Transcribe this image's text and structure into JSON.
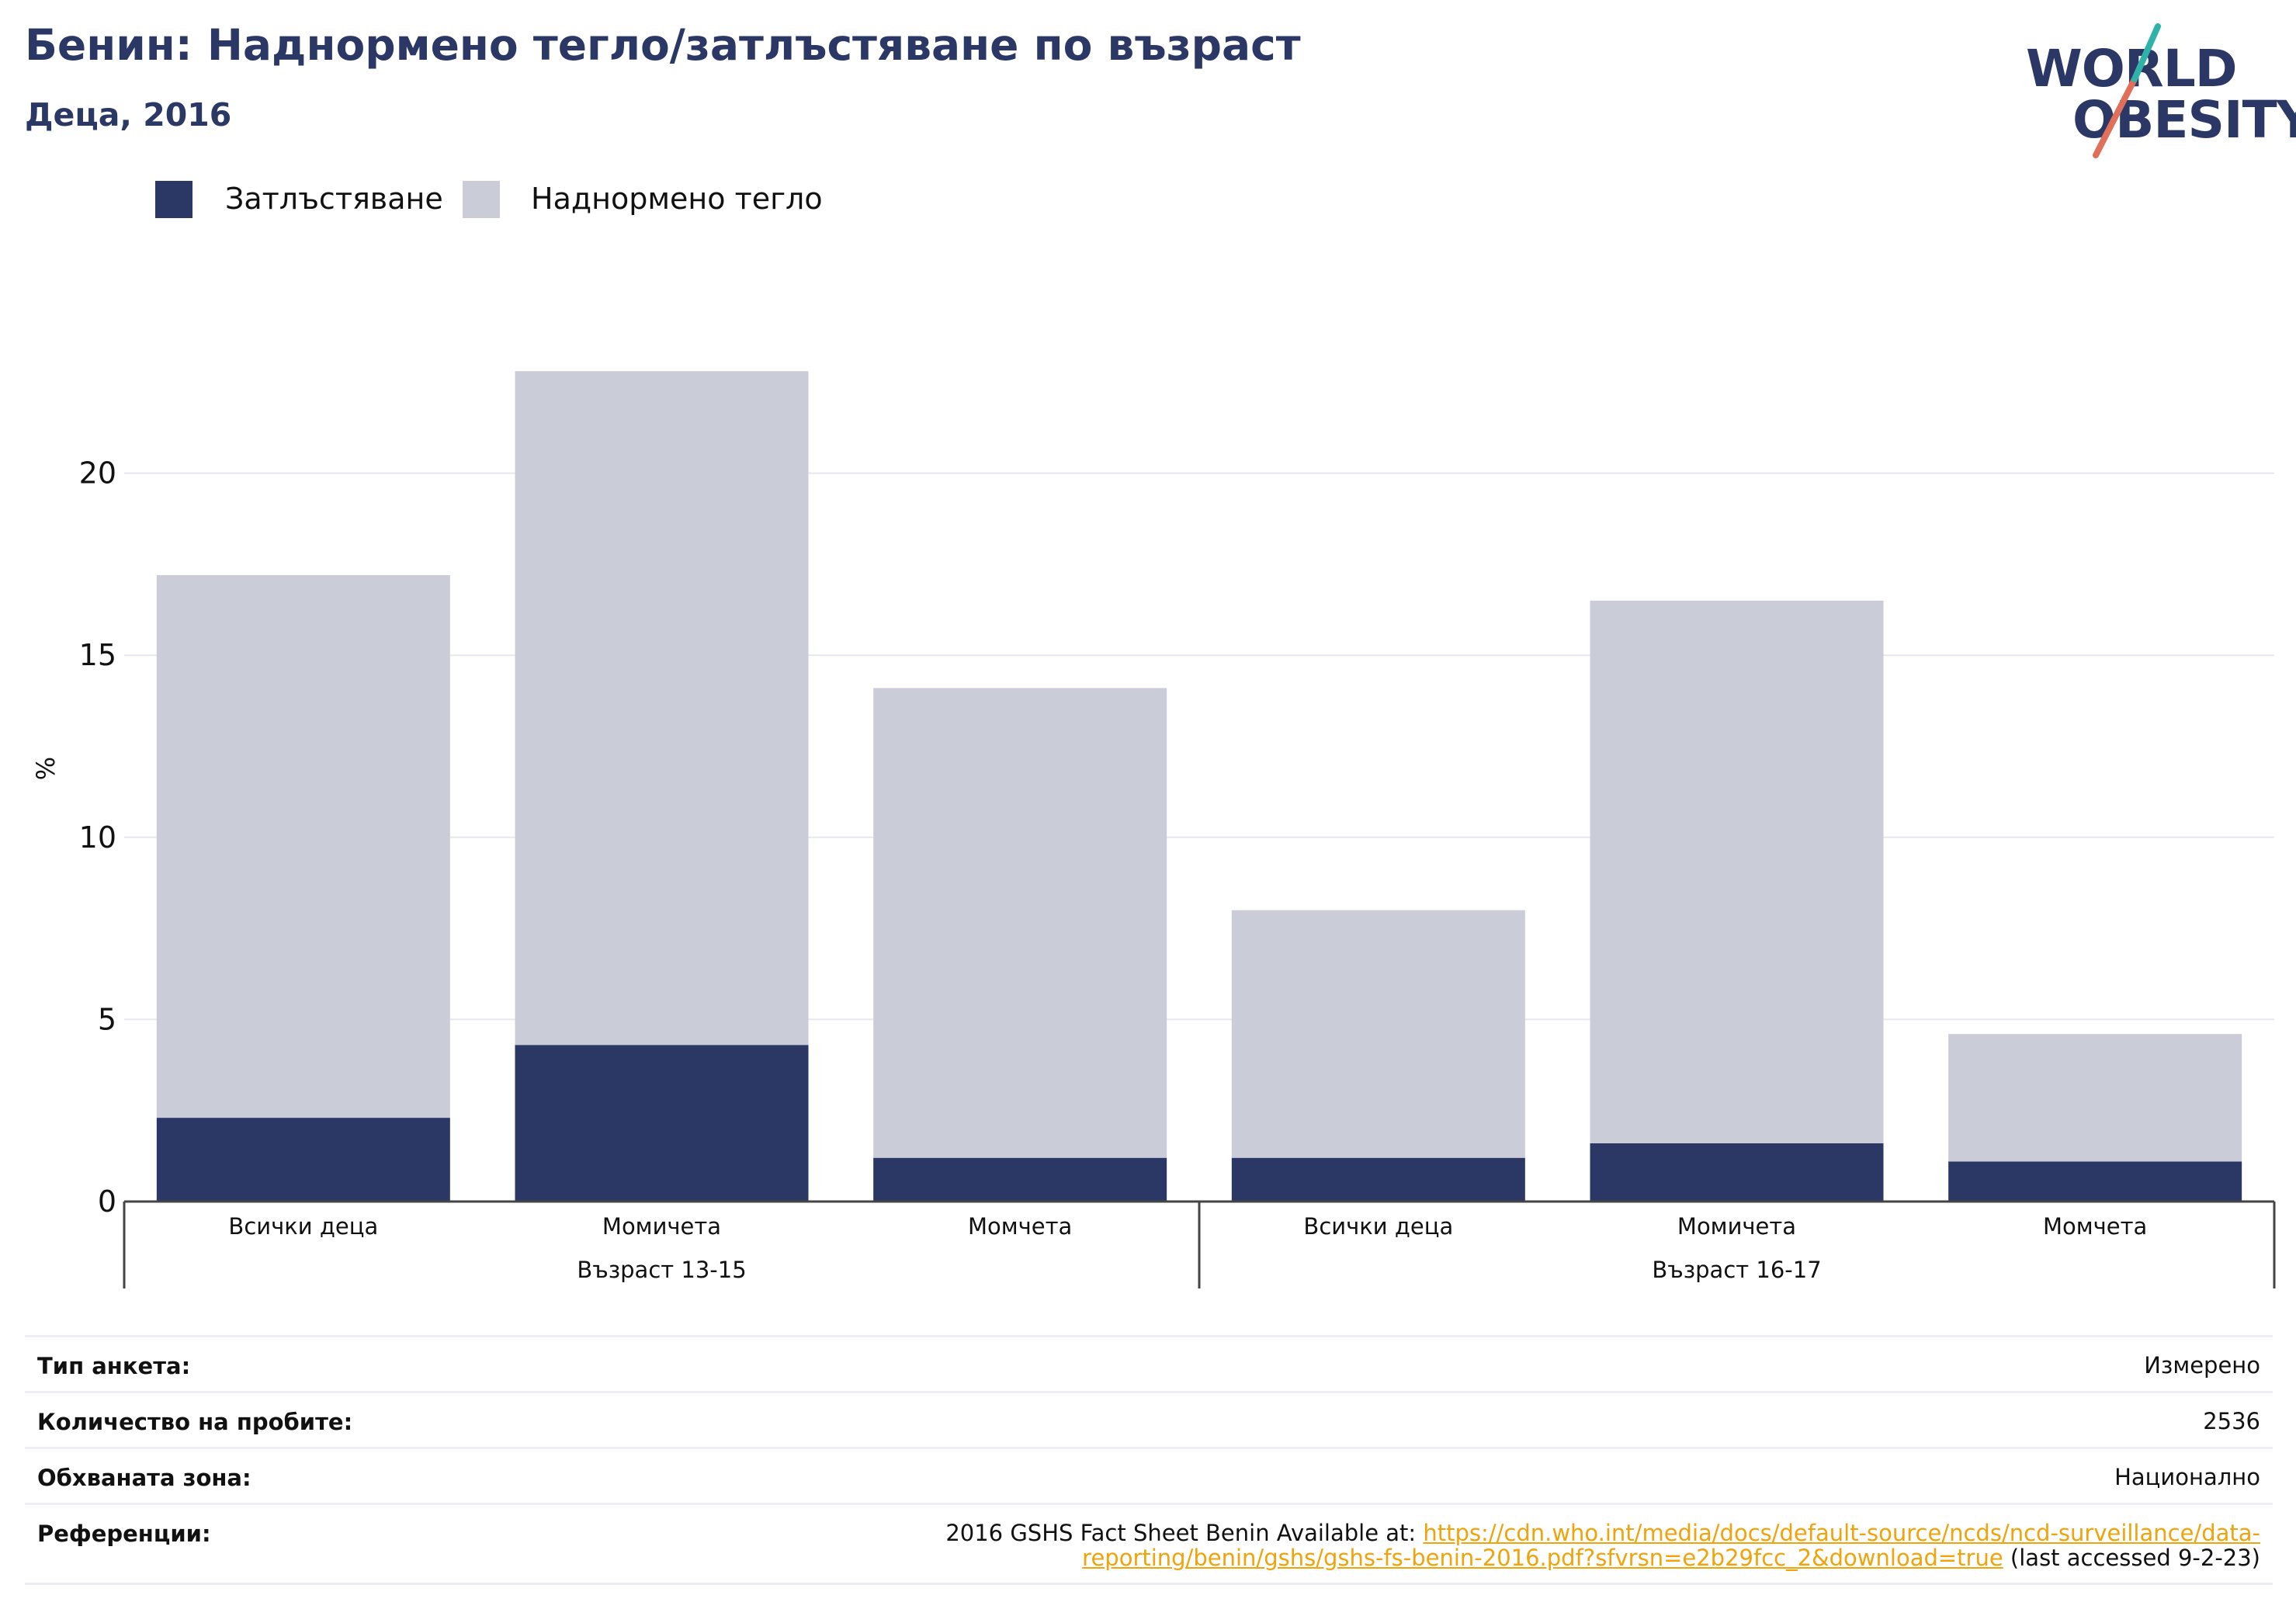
{
  "header": {
    "title": "Бенин: Наднормено тегло/затлъстяване по възраст",
    "subtitle": "Деца, 2016"
  },
  "logo": {
    "line1": "WORLD",
    "line2": "OBESITY"
  },
  "legend": [
    {
      "label": "Затлъстяване",
      "color": "#2b3865"
    },
    {
      "label": "Наднормено тегло",
      "color": "#cacdd8"
    }
  ],
  "chart_data": {
    "type": "bar",
    "stacked": true,
    "ylabel": "%",
    "ylim": [
      0,
      25
    ],
    "yticks": [
      0,
      5,
      10,
      15,
      20
    ],
    "grid": true,
    "legend_position": "top-left",
    "categories": [
      "Всички деца",
      "Момичета",
      "Момчета",
      "Всички деца",
      "Момичета",
      "Момчета"
    ],
    "groups": [
      {
        "label": "Възраст 13-15",
        "categories": [
          0,
          1,
          2
        ]
      },
      {
        "label": "Възраст 16-17",
        "categories": [
          3,
          4,
          5
        ]
      }
    ],
    "series": [
      {
        "name": "Затлъстяване",
        "color": "#2b3865",
        "values": [
          2.3,
          4.3,
          1.2,
          1.2,
          1.6,
          1.1
        ]
      },
      {
        "name": "Наднормено тегло",
        "color": "#cacdd8",
        "values": [
          14.9,
          18.5,
          12.9,
          6.8,
          14.9,
          3.5
        ]
      }
    ]
  },
  "info": {
    "rows": [
      {
        "key": "Тип анкета:",
        "value": "Измерено"
      },
      {
        "key": "Количество на пробите:",
        "value": "2536"
      },
      {
        "key": "Обхваната зона:",
        "value": "Национално"
      }
    ],
    "references": {
      "key": "Референции:",
      "prefix": "2016 GSHS Fact Sheet Benin Available at: ",
      "link_line1": "https://cdn.who.int/media/docs/default-source/ncds/ncd-surveillance/data-",
      "link_line2": "reporting/benin/gshs/gshs-fs-benin-2016.pdf?sfvrsn=e2b29fcc_2&download=true",
      "suffix": " (last accessed 9-2-23)"
    }
  }
}
